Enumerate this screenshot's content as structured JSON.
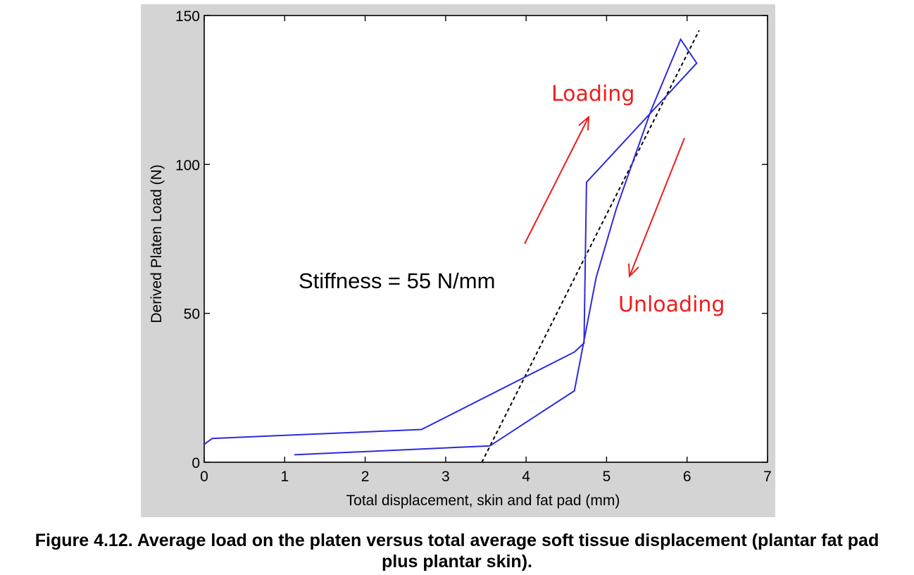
{
  "caption": {
    "line1": "Figure 4.12. Average load on the platen versus total average soft tissue displacement (plantar fat pad",
    "line2": "plus plantar skin)."
  },
  "chart_data": {
    "type": "line",
    "title": "",
    "xlabel": "Total displacement, skin and fat pad (mm)",
    "ylabel": "Derived Platen Load (N)",
    "xlim": [
      0,
      7
    ],
    "ylim": [
      0,
      150
    ],
    "xticks": [
      0,
      1,
      2,
      3,
      4,
      5,
      6,
      7
    ],
    "yticks": [
      0,
      50,
      100,
      150
    ],
    "grid": false,
    "colors": {
      "curve": "#2b2bdc",
      "fit": "#000000",
      "arrow": "#ee1c1c"
    },
    "series": [
      {
        "values_x": [
          0,
          0.1,
          2.7,
          4.6,
          4.72,
          4.75,
          6.12,
          5.92,
          5.55,
          5.12,
          4.87,
          4.6,
          3.55,
          1.12
        ],
        "values_y": [
          6,
          8,
          11,
          37,
          40,
          94,
          134,
          142,
          118,
          85,
          62,
          24,
          5.5,
          2.5
        ]
      }
    ],
    "fit_line": {
      "x": [
        3.45,
        6.15
      ],
      "y": [
        0,
        145
      ]
    },
    "annotations": {
      "stiffness": "Stiffness = 55 N/mm",
      "loading": "Loading",
      "unloading": "Unloading"
    }
  }
}
